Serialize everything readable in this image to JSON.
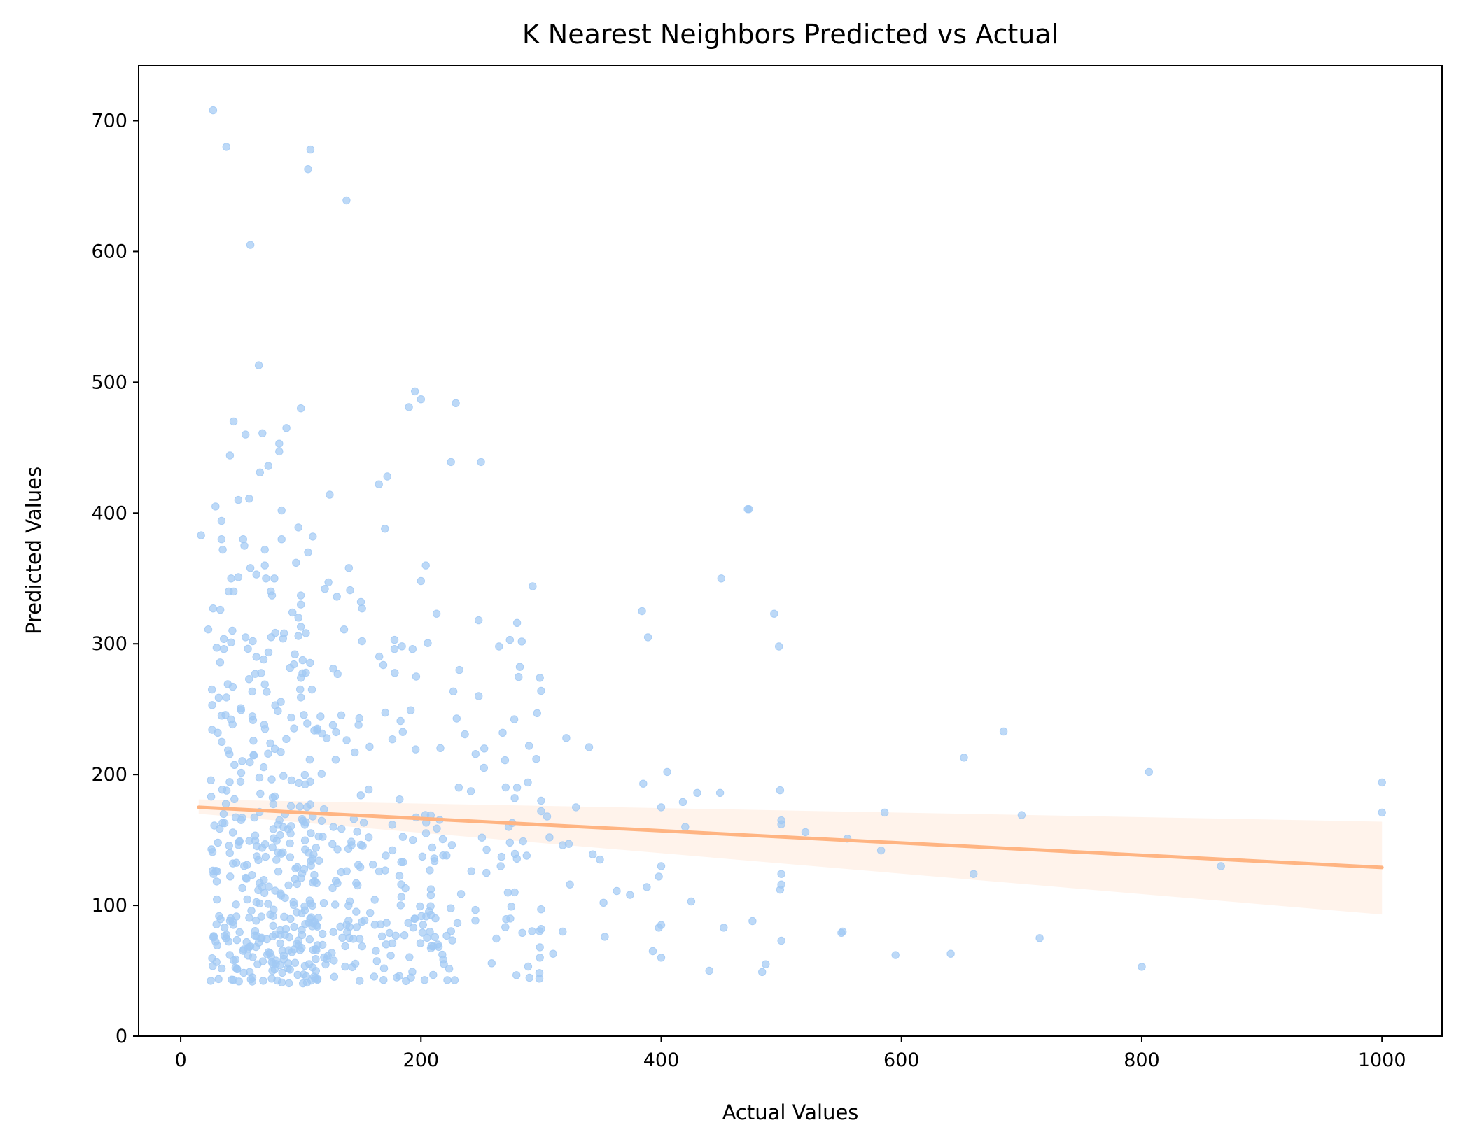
{
  "chart_data": {
    "type": "scatter",
    "title": "K Nearest Neighbors Predicted vs Actual",
    "xlabel": "Actual Values",
    "ylabel": "Predicted Values",
    "xlim": [
      -35,
      1050
    ],
    "ylim": [
      0,
      742
    ],
    "x_ticks": [
      0,
      200,
      400,
      600,
      800,
      1000
    ],
    "y_ticks": [
      0,
      100,
      200,
      300,
      400,
      500,
      600,
      700
    ],
    "grid": false,
    "legend": "none",
    "colors": {
      "points": "#a1c9f4",
      "regression_line": "#ffb482",
      "confidence_band": "#ffb482",
      "axes": "#000000",
      "background": "#ffffff"
    },
    "regression": {
      "x_range": [
        15,
        1000
      ],
      "y_start": 175,
      "y_end": 129,
      "band_lower_start": 170,
      "band_upper_start": 181,
      "band_lower_end": 93,
      "band_upper_end": 164
    },
    "outlier_points": [
      [
        27,
        708
      ],
      [
        38,
        680
      ],
      [
        108,
        678
      ],
      [
        106,
        663
      ],
      [
        138,
        639
      ],
      [
        58,
        605
      ],
      [
        65,
        513
      ],
      [
        195,
        493
      ],
      [
        200,
        487
      ],
      [
        229,
        484
      ],
      [
        190,
        481
      ],
      [
        100,
        480
      ],
      [
        44,
        470
      ],
      [
        88,
        465
      ],
      [
        68,
        461
      ],
      [
        54,
        460
      ],
      [
        82,
        453
      ],
      [
        82,
        447
      ],
      [
        41,
        444
      ],
      [
        225,
        439
      ],
      [
        250,
        439
      ],
      [
        73,
        436
      ],
      [
        66,
        431
      ],
      [
        172,
        428
      ],
      [
        165,
        422
      ],
      [
        124,
        414
      ],
      [
        48,
        410
      ],
      [
        57,
        411
      ],
      [
        29,
        405
      ],
      [
        84,
        402
      ],
      [
        472,
        403
      ],
      [
        34,
        394
      ],
      [
        98,
        389
      ],
      [
        170,
        388
      ],
      [
        17,
        383
      ],
      [
        110,
        382
      ],
      [
        84,
        380
      ],
      [
        52,
        380
      ],
      [
        34,
        380
      ],
      [
        53,
        375
      ],
      [
        35,
        372
      ],
      [
        70,
        372
      ],
      [
        106,
        370
      ],
      [
        204,
        360
      ],
      [
        140,
        358
      ],
      [
        58,
        358
      ],
      [
        96,
        362
      ],
      [
        70,
        360
      ],
      [
        63,
        353
      ],
      [
        78,
        350
      ],
      [
        450,
        350
      ],
      [
        71,
        350
      ],
      [
        48,
        351
      ],
      [
        42,
        350
      ],
      [
        200,
        348
      ],
      [
        123,
        347
      ],
      [
        120,
        342
      ],
      [
        141,
        341
      ],
      [
        75,
        340
      ],
      [
        44,
        340
      ],
      [
        76,
        337
      ],
      [
        100,
        337
      ],
      [
        130,
        336
      ],
      [
        293,
        344
      ],
      [
        40,
        340
      ],
      [
        150,
        332
      ],
      [
        100,
        330
      ],
      [
        151,
        327
      ],
      [
        27,
        327
      ],
      [
        33,
        326
      ],
      [
        213,
        323
      ],
      [
        384,
        325
      ],
      [
        494,
        323
      ],
      [
        93,
        324
      ],
      [
        98,
        320
      ],
      [
        248,
        318
      ],
      [
        280,
        316
      ],
      [
        100,
        313
      ],
      [
        136,
        311
      ],
      [
        43,
        310
      ],
      [
        23,
        311
      ],
      [
        86,
        308
      ],
      [
        98,
        306
      ],
      [
        54,
        305
      ],
      [
        389,
        305
      ],
      [
        274,
        303
      ],
      [
        60,
        302
      ],
      [
        42,
        301
      ],
      [
        151,
        302
      ],
      [
        178,
        303
      ],
      [
        36,
        296
      ],
      [
        265,
        298
      ],
      [
        193,
        296
      ],
      [
        498,
        298
      ],
      [
        178,
        296
      ],
      [
        95,
        292
      ],
      [
        63,
        290
      ],
      [
        69,
        288
      ],
      [
        299,
        274
      ],
      [
        100,
        274
      ],
      [
        196,
        275
      ],
      [
        127,
        281
      ],
      [
        232,
        280
      ],
      [
        70,
        269
      ],
      [
        300,
        264
      ],
      [
        248,
        260
      ],
      [
        100,
        259
      ],
      [
        26,
        265
      ],
      [
        38,
        259
      ],
      [
        183,
        241
      ],
      [
        148,
        238
      ],
      [
        685,
        233
      ],
      [
        321,
        228
      ],
      [
        340,
        221
      ],
      [
        652,
        213
      ],
      [
        806,
        202
      ],
      [
        1000,
        194
      ],
      [
        1000,
        171
      ],
      [
        586,
        171
      ],
      [
        700,
        169
      ],
      [
        473,
        403
      ],
      [
        385,
        193
      ],
      [
        405,
        202
      ],
      [
        430,
        186
      ],
      [
        449,
        186
      ],
      [
        499,
        188
      ],
      [
        500,
        165
      ],
      [
        500,
        162
      ],
      [
        520,
        156
      ],
      [
        555,
        151
      ],
      [
        583,
        142
      ],
      [
        660,
        124
      ],
      [
        866,
        130
      ],
      [
        500,
        124
      ],
      [
        500,
        116
      ],
      [
        499,
        112
      ],
      [
        388,
        114
      ],
      [
        398,
        122
      ],
      [
        400,
        130
      ],
      [
        420,
        160
      ],
      [
        418,
        179
      ],
      [
        400,
        175
      ],
      [
        425,
        103
      ],
      [
        476,
        88
      ],
      [
        452,
        83
      ],
      [
        398,
        83
      ],
      [
        400,
        85
      ],
      [
        500,
        73
      ],
      [
        550,
        79
      ],
      [
        551,
        80
      ],
      [
        715,
        75
      ],
      [
        595,
        62
      ],
      [
        641,
        63
      ],
      [
        800,
        53
      ],
      [
        487,
        55
      ],
      [
        484,
        49
      ],
      [
        440,
        50
      ],
      [
        400,
        60
      ],
      [
        393,
        65
      ],
      [
        374,
        108
      ],
      [
        363,
        111
      ],
      [
        352,
        102
      ],
      [
        353,
        76
      ],
      [
        349,
        135
      ],
      [
        343,
        139
      ],
      [
        329,
        175
      ],
      [
        323,
        147
      ],
      [
        324,
        116
      ],
      [
        318,
        146
      ],
      [
        310,
        63
      ],
      [
        318,
        80
      ],
      [
        299,
        60
      ],
      [
        299,
        68
      ],
      [
        300,
        82
      ],
      [
        300,
        97
      ],
      [
        305,
        168
      ],
      [
        307,
        152
      ],
      [
        289,
        194
      ],
      [
        290,
        222
      ],
      [
        296,
        212
      ],
      [
        300,
        180
      ],
      [
        300,
        172
      ],
      [
        280,
        190
      ],
      [
        278,
        182
      ],
      [
        285,
        149
      ],
      [
        288,
        138
      ],
      [
        273,
        160
      ],
      [
        278,
        110
      ],
      [
        268,
        232
      ],
      [
        270,
        211
      ],
      [
        274,
        148
      ],
      [
        276,
        163
      ]
    ],
    "dense_cloud": {
      "note": "",
      "x_range": [
        15,
        300
      ],
      "y_range": [
        33,
        300
      ],
      "count": 560
    }
  }
}
